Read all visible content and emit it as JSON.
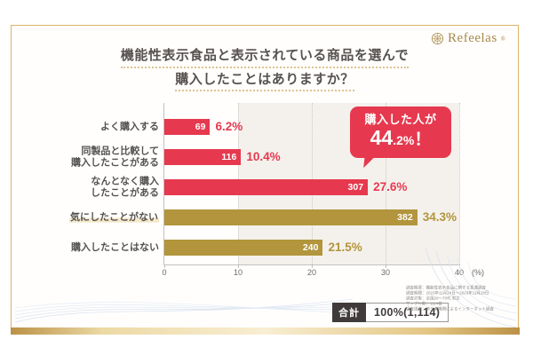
{
  "brand": {
    "name": "Refeelas",
    "reg": "®"
  },
  "title": {
    "line1": "機能性表示食品と表示されている商品を選んで",
    "line2": "購入したことはありますか？"
  },
  "chart_data": {
    "type": "bar",
    "orientation": "horizontal",
    "title": "機能性表示食品と表示されている商品を選んで購入したことはありますか？",
    "categories": [
      "よく購入する",
      "同製品と比較して購入したことがある",
      "なんとなく購入したことがある",
      "気にしたことがない",
      "購入したことはない"
    ],
    "categories_display": [
      [
        "よく購入する"
      ],
      [
        "同製品と比較して",
        "購入したことがある"
      ],
      [
        "なんとなく購入",
        "したことがある"
      ],
      [
        "気にしたことがない"
      ],
      [
        "購入したことはない"
      ]
    ],
    "values": [
      6.2,
      10.4,
      27.6,
      34.3,
      21.5
    ],
    "value_labels": [
      "6.2%",
      "10.4%",
      "27.6%",
      "34.3%",
      "21.5%"
    ],
    "counts": [
      69,
      116,
      307,
      382,
      240
    ],
    "bar_colors": [
      "#e6394f",
      "#e6394f",
      "#e6394f",
      "#b2953c",
      "#b2953c"
    ],
    "highlight_category_index": 3,
    "xlim": [
      0,
      40
    ],
    "x_ticks": [
      0,
      10,
      20,
      30,
      40
    ],
    "x_unit": "(%)",
    "grid": "dotted vertical gridlines at 10/20/30/40",
    "legend": "none"
  },
  "callout": {
    "line1": "購入した人が",
    "value_big": "44",
    "value_small": ".2%",
    "exclaim": "！"
  },
  "footer": {
    "total_label": "合計",
    "total_value": "100%(1,114)",
    "survey_notes": [
      "調査概要：機能性表示食品に関する意識調査",
      "調査期間：2023年11月24日～2023年11月28日",
      "調査対象：全国20～70代 男女",
      "サンプル数：1114名",
      "調査提供：第三者機関によるインターネット調査"
    ]
  },
  "colors": {
    "accent_red": "#e6394f",
    "accent_gold": "#b2953c",
    "frame_gold": "#d9b469",
    "title_text": "#575250",
    "plot_band": "#f4f1ec"
  }
}
